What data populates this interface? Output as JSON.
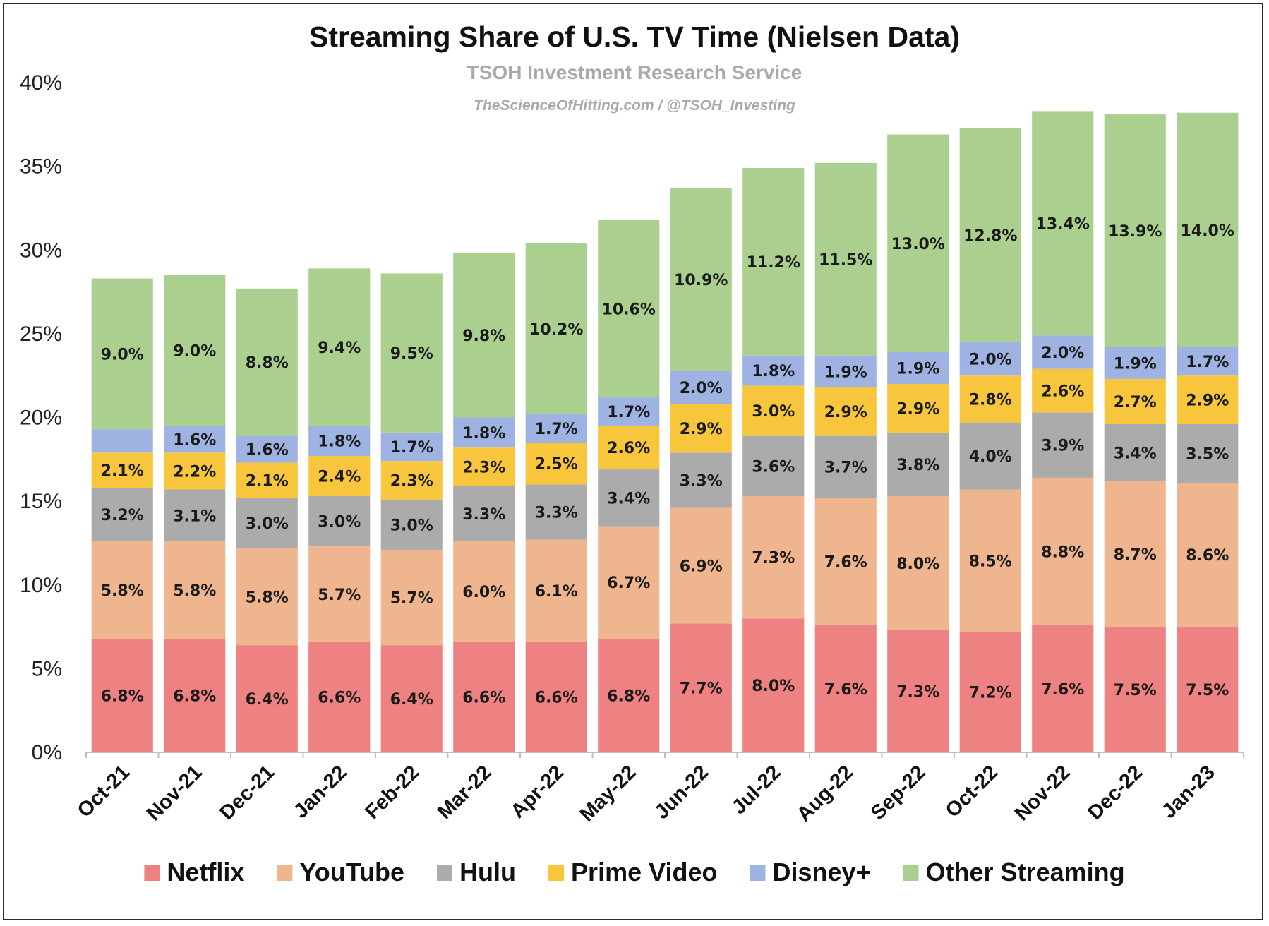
{
  "chart_data": {
    "type": "bar",
    "stacked": true,
    "title": "Streaming Share of U.S. TV Time (Nielsen Data)",
    "subtitle": "TSOH Investment Research Service",
    "source": "TheScienceOfHitting.com / @TSOH_Investing",
    "categories": [
      "Oct-21",
      "Nov-21",
      "Dec-21",
      "Jan-22",
      "Feb-22",
      "Mar-22",
      "Apr-22",
      "May-22",
      "Jun-22",
      "Jul-22",
      "Aug-22",
      "Sep-22",
      "Oct-22",
      "Nov-22",
      "Dec-22",
      "Jan-23"
    ],
    "ylim": [
      0,
      40
    ],
    "yticks": [
      0,
      5,
      10,
      15,
      20,
      25,
      30,
      35,
      40
    ],
    "ytick_labels": [
      "0%",
      "5%",
      "10%",
      "15%",
      "20%",
      "25%",
      "30%",
      "35%",
      "40%"
    ],
    "legend_position": "bottom",
    "grid": false,
    "series": [
      {
        "name": "Netflix",
        "color": "#ee8182",
        "values": [
          6.8,
          6.8,
          6.4,
          6.6,
          6.4,
          6.6,
          6.6,
          6.8,
          7.7,
          8.0,
          7.6,
          7.3,
          7.2,
          7.6,
          7.5,
          7.5
        ],
        "labels": [
          "6.8%",
          "6.8%",
          "6.4%",
          "6.6%",
          "6.4%",
          "6.6%",
          "6.6%",
          "6.8%",
          "7.7%",
          "8.0%",
          "7.6%",
          "7.3%",
          "7.2%",
          "7.6%",
          "7.5%",
          "7.5%"
        ]
      },
      {
        "name": "YouTube",
        "color": "#eeb58e",
        "values": [
          5.8,
          5.8,
          5.8,
          5.7,
          5.7,
          6.0,
          6.1,
          6.7,
          6.9,
          7.3,
          7.6,
          8.0,
          8.5,
          8.8,
          8.7,
          8.6
        ],
        "labels": [
          "5.8%",
          "5.8%",
          "5.8%",
          "5.7%",
          "5.7%",
          "6.0%",
          "6.1%",
          "6.7%",
          "6.9%",
          "7.3%",
          "7.6%",
          "8.0%",
          "8.5%",
          "8.8%",
          "8.7%",
          "8.6%"
        ]
      },
      {
        "name": "Hulu",
        "color": "#ababab",
        "values": [
          3.2,
          3.1,
          3.0,
          3.0,
          3.0,
          3.3,
          3.3,
          3.4,
          3.3,
          3.6,
          3.7,
          3.8,
          4.0,
          3.9,
          3.4,
          3.5
        ],
        "labels": [
          "3.2%",
          "3.1%",
          "3.0%",
          "3.0%",
          "3.0%",
          "3.3%",
          "3.3%",
          "3.4%",
          "3.3%",
          "3.6%",
          "3.7%",
          "3.8%",
          "4.0%",
          "3.9%",
          "3.4%",
          "3.5%"
        ]
      },
      {
        "name": "Prime Video",
        "color": "#f7c63c",
        "values": [
          2.1,
          2.2,
          2.1,
          2.4,
          2.3,
          2.3,
          2.5,
          2.6,
          2.9,
          3.0,
          2.9,
          2.9,
          2.8,
          2.6,
          2.7,
          2.9
        ],
        "labels": [
          "2.1%",
          "2.2%",
          "2.1%",
          "2.4%",
          "2.3%",
          "2.3%",
          "2.5%",
          "2.6%",
          "2.9%",
          "3.0%",
          "2.9%",
          "2.9%",
          "2.8%",
          "2.6%",
          "2.7%",
          "2.9%"
        ]
      },
      {
        "name": "Disney+",
        "color": "#9fb3e2",
        "values": [
          1.4,
          1.6,
          1.6,
          1.8,
          1.7,
          1.8,
          1.7,
          1.7,
          2.0,
          1.8,
          1.9,
          1.9,
          2.0,
          2.0,
          1.9,
          1.7
        ],
        "labels": [
          "",
          "1.6%",
          "1.6%",
          "1.8%",
          "1.7%",
          "1.8%",
          "1.7%",
          "1.7%",
          "2.0%",
          "1.8%",
          "1.9%",
          "1.9%",
          "2.0%",
          "2.0%",
          "1.9%",
          "1.7%"
        ]
      },
      {
        "name": "Other Streaming",
        "color": "#abcf8e",
        "values": [
          9.0,
          9.0,
          8.8,
          9.4,
          9.5,
          9.8,
          10.2,
          10.6,
          10.9,
          11.2,
          11.5,
          13.0,
          12.8,
          13.4,
          13.9,
          14.0
        ],
        "labels": [
          "9.0%",
          "9.0%",
          "8.8%",
          "9.4%",
          "9.5%",
          "9.8%",
          "10.2%",
          "10.6%",
          "10.9%",
          "11.2%",
          "11.5%",
          "13.0%",
          "12.8%",
          "13.4%",
          "13.9%",
          "14.0%"
        ]
      }
    ]
  }
}
